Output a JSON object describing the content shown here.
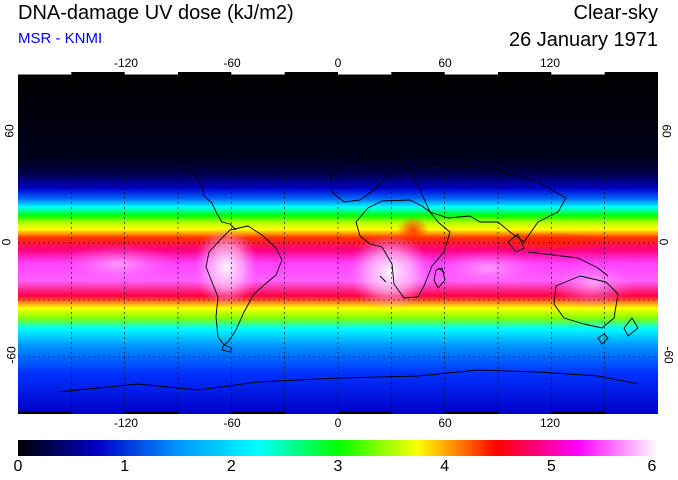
{
  "header": {
    "title": "DNA-damage UV dose (kJ/m2)",
    "subtitle": "MSR - KNMI",
    "condition": "Clear-sky",
    "date": "26 January 1971"
  },
  "map": {
    "lon_ticks": [
      "-120",
      "-60",
      "0",
      "60",
      "120"
    ],
    "lat_ticks": [
      "60",
      "0",
      "-60"
    ],
    "lon_range": [
      -180,
      180
    ],
    "lat_range": [
      -90,
      90
    ],
    "gridlines": "dashed",
    "field_description": "Clear-sky DNA-damage UV dose; maximum near 15-40 S (austral summer), near zero north of 45 N"
  },
  "colorbar": {
    "labels": [
      "0",
      "1",
      "2",
      "3",
      "4",
      "5",
      "6"
    ],
    "min": 0,
    "max": 6,
    "colors": [
      "#000000",
      "#0000c8",
      "#0096ff",
      "#00ffff",
      "#00ff00",
      "#ffff00",
      "#ff0000",
      "#ff00ff",
      "#ffffff"
    ]
  }
}
